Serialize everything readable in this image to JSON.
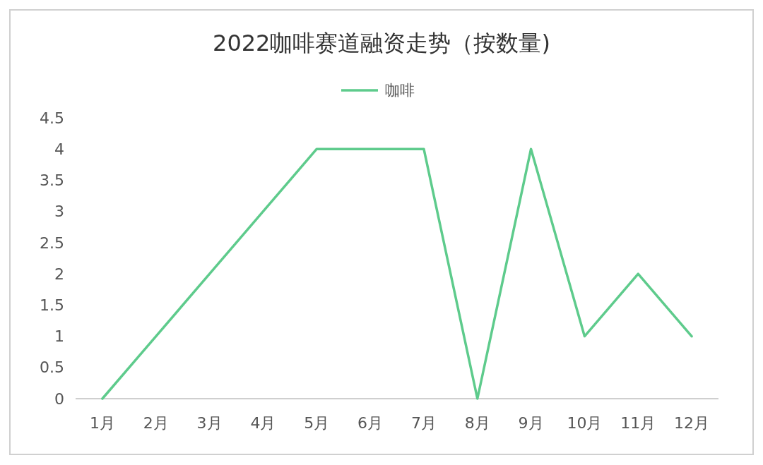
{
  "chart_data": {
    "type": "line",
    "title": "2022咖啡赛道融资走势（按数量)",
    "categories": [
      "1月",
      "2月",
      "3月",
      "4月",
      "5月",
      "6月",
      "7月",
      "8月",
      "9月",
      "10月",
      "11月",
      "12月"
    ],
    "series": [
      {
        "name": "咖啡",
        "color": "#5ecb8c",
        "values": [
          0,
          1,
          2,
          3,
          4,
          4,
          4,
          0,
          4,
          1,
          2,
          1
        ]
      }
    ],
    "ylim": [
      0,
      4.5
    ],
    "yticks": [
      0,
      0.5,
      1,
      1.5,
      2,
      2.5,
      3,
      3.5,
      4,
      4.5
    ],
    "grid": false,
    "legend": "top",
    "marker": "none",
    "line_style": "solid"
  }
}
